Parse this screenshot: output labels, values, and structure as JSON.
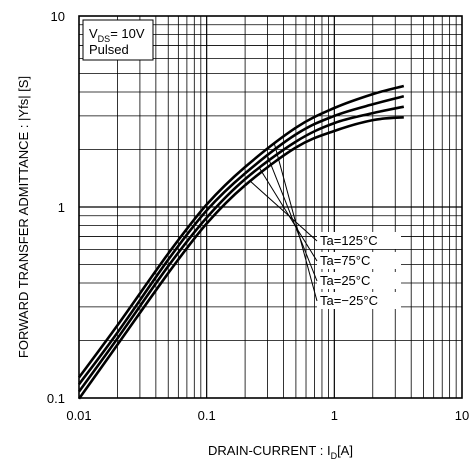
{
  "chart_data": {
    "type": "line",
    "x_scale": "log",
    "y_scale": "log",
    "xlim": [
      0.01,
      10
    ],
    "ylim": [
      0.1,
      10
    ],
    "xticks": [
      {
        "value": 0.01,
        "label": "0.01"
      },
      {
        "value": 0.1,
        "label": "0.1"
      },
      {
        "value": 1,
        "label": "1"
      },
      {
        "value": 10,
        "label": "10"
      }
    ],
    "yticks": [
      {
        "value": 0.1,
        "label": "0.1"
      },
      {
        "value": 1,
        "label": "1"
      },
      {
        "value": 10,
        "label": "10"
      }
    ],
    "xlabel": {
      "main": "DRAIN-CURRENT : I",
      "sub": "D",
      "unit": "[A]"
    },
    "ylabel": "FORWARD TRANSFER  ADMITTANCE : |Yfs| [S]",
    "grid": true,
    "annotation": {
      "line1_main": "V",
      "line1_sub": "DS",
      "line1_rest": "= 10V",
      "line2": "Pulsed",
      "placement": "top-left"
    },
    "series": [
      {
        "name": "Ta=125°C",
        "x": [
          0.01,
          0.02,
          0.05,
          0.1,
          0.2,
          0.5,
          1,
          2,
          3.5
        ],
        "y": [
          0.099,
          0.19,
          0.45,
          0.82,
          1.3,
          2.05,
          2.5,
          2.85,
          2.95
        ]
      },
      {
        "name": "Ta=75°C",
        "x": [
          0.01,
          0.02,
          0.05,
          0.1,
          0.2,
          0.5,
          1,
          2,
          3.5
        ],
        "y": [
          0.108,
          0.205,
          0.49,
          0.88,
          1.4,
          2.2,
          2.75,
          3.1,
          3.35
        ]
      },
      {
        "name": "Ta=25°C",
        "x": [
          0.01,
          0.02,
          0.05,
          0.1,
          0.2,
          0.5,
          1,
          2,
          3.5
        ],
        "y": [
          0.118,
          0.22,
          0.53,
          0.96,
          1.5,
          2.4,
          3.0,
          3.45,
          3.8
        ]
      },
      {
        "name": "Ta=−25°C",
        "x": [
          0.01,
          0.02,
          0.05,
          0.1,
          0.2,
          0.5,
          1,
          2,
          3.5
        ],
        "y": [
          0.128,
          0.24,
          0.57,
          1.03,
          1.62,
          2.6,
          3.3,
          3.9,
          4.3
        ]
      }
    ],
    "legend_placement": "right-middle",
    "line_color": "#000000"
  }
}
